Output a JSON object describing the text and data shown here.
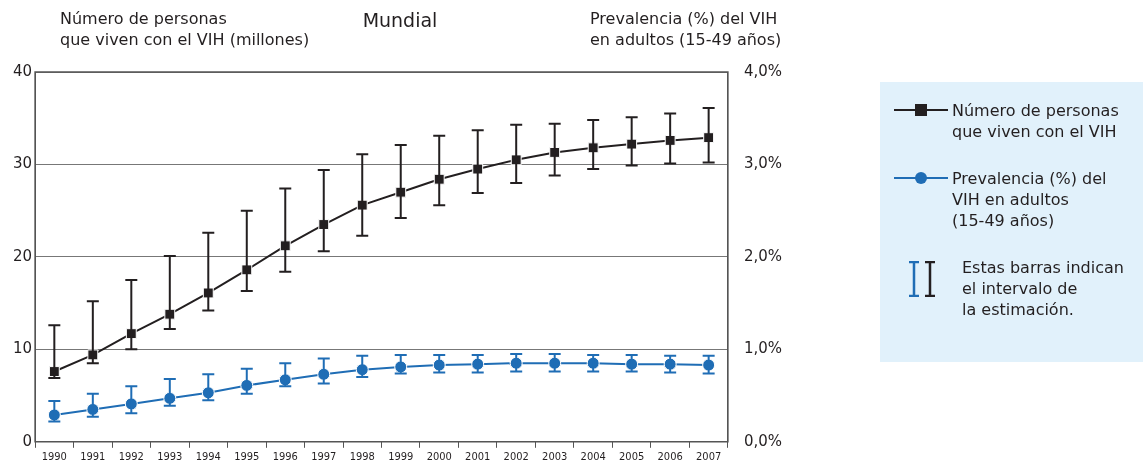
{
  "chart_data": {
    "type": "line",
    "title": "Mundial",
    "ylabel": "Número de personas\nque viven con el VIH (millones)",
    "y2label": "Prevalencia (%) del VIH\nen adultos (15-49 años)",
    "categories": [
      "1990",
      "1991",
      "1992",
      "1993",
      "1994",
      "1995",
      "1996",
      "1997",
      "1998",
      "1999",
      "2000",
      "2001",
      "2002",
      "2003",
      "2004",
      "2005",
      "2006",
      "2007"
    ],
    "series": [
      {
        "name": "Número de personas\nque viven con el VIH",
        "color": "#231f20",
        "marker": "square",
        "values": [
          7.6,
          9.4,
          11.7,
          13.8,
          16.1,
          18.6,
          21.2,
          23.5,
          25.6,
          27.0,
          28.4,
          29.5,
          30.5,
          31.3,
          31.8,
          32.2,
          32.6,
          32.9
        ],
        "errors": [
          [
            6.9,
            12.6
          ],
          [
            8.5,
            15.2
          ],
          [
            10.0,
            17.5
          ],
          [
            12.2,
            20.1
          ],
          [
            14.2,
            22.6
          ],
          [
            16.3,
            25.0
          ],
          [
            18.4,
            27.4
          ],
          [
            20.6,
            29.4
          ],
          [
            22.3,
            31.1
          ],
          [
            24.2,
            32.1
          ],
          [
            25.6,
            33.1
          ],
          [
            26.9,
            33.7
          ],
          [
            28.0,
            34.3
          ],
          [
            28.8,
            34.4
          ],
          [
            29.5,
            34.8
          ],
          [
            29.9,
            35.1
          ],
          [
            30.1,
            35.5
          ],
          [
            30.2,
            36.1
          ]
        ]
      },
      {
        "name": "Prevalencia (%) del\nVIH en adultos\n(15-49 años)",
        "color": "#1f6db5",
        "marker": "circle",
        "axis": "y2",
        "values": [
          0.29,
          0.35,
          0.41,
          0.47,
          0.53,
          0.61,
          0.67,
          0.73,
          0.78,
          0.81,
          0.83,
          0.84,
          0.85,
          0.85,
          0.85,
          0.84,
          0.84,
          0.83
        ],
        "errors": [
          [
            0.22,
            0.44
          ],
          [
            0.27,
            0.52
          ],
          [
            0.31,
            0.6
          ],
          [
            0.39,
            0.68
          ],
          [
            0.45,
            0.73
          ],
          [
            0.52,
            0.79
          ],
          [
            0.6,
            0.85
          ],
          [
            0.63,
            0.9
          ],
          [
            0.7,
            0.93
          ],
          [
            0.74,
            0.94
          ],
          [
            0.75,
            0.94
          ],
          [
            0.75,
            0.94
          ],
          [
            0.76,
            0.95
          ],
          [
            0.76,
            0.95
          ],
          [
            0.76,
            0.94
          ],
          [
            0.76,
            0.94
          ],
          [
            0.75,
            0.93
          ],
          [
            0.74,
            0.93
          ]
        ]
      }
    ],
    "ylim": [
      0,
      40
    ],
    "yticks": [
      0,
      10,
      20,
      30,
      40
    ],
    "y2lim": [
      0,
      4
    ],
    "y2ticks": [
      {
        "value": 0,
        "label": "0,0%"
      },
      {
        "value": 1,
        "label": "1,0%"
      },
      {
        "value": 2,
        "label": "2,0%"
      },
      {
        "value": 3,
        "label": "3,0%"
      },
      {
        "value": 4,
        "label": "4,0%"
      }
    ],
    "grid": "y",
    "legend": "right",
    "line_style": "solid",
    "annotations": [
      "Estas barras indican\nel intervalo de\nla estimación."
    ]
  }
}
